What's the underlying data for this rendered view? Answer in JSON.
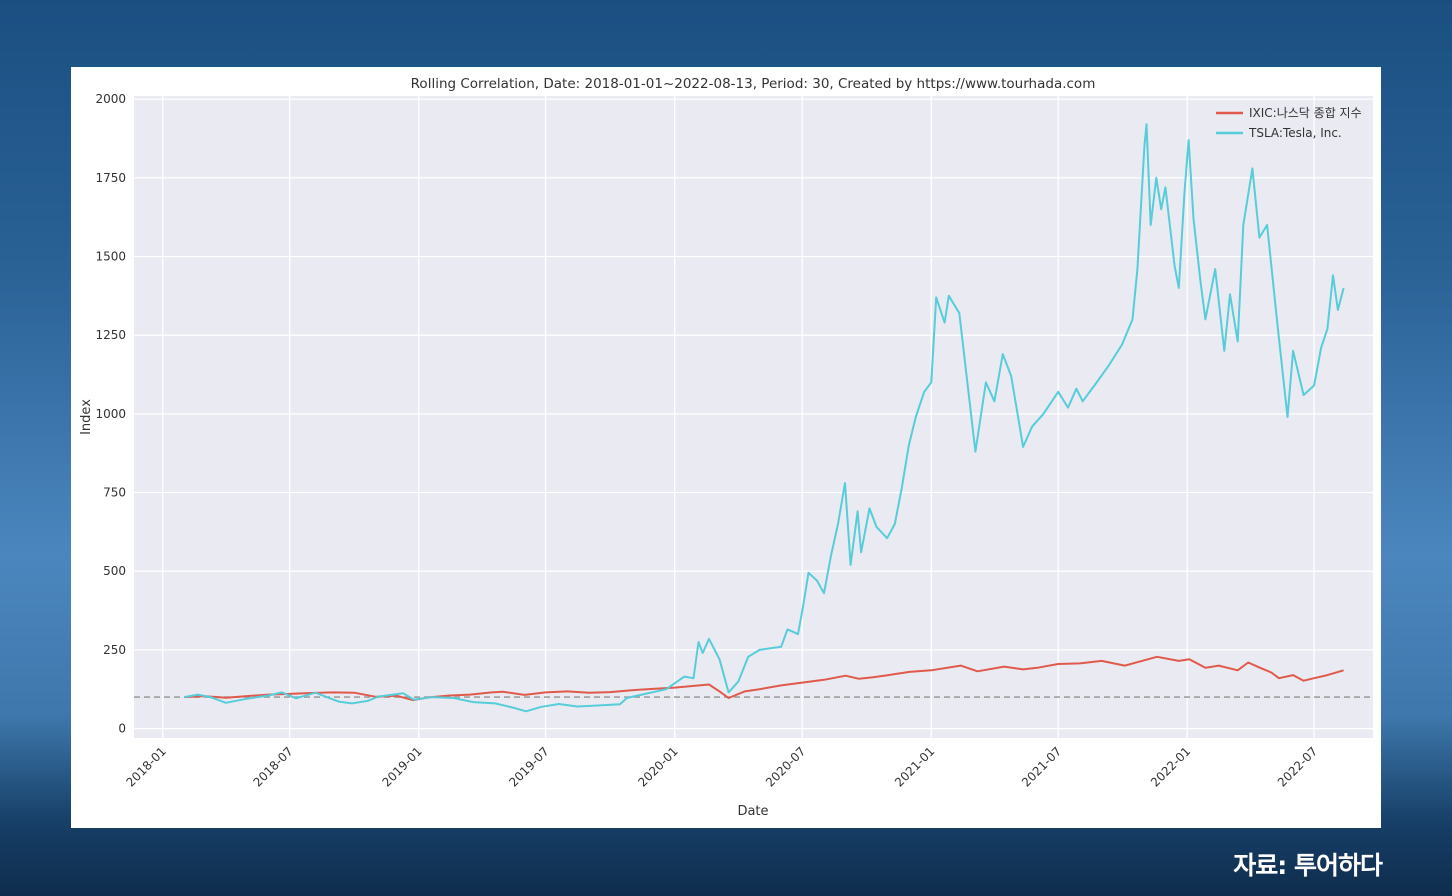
{
  "footer": {
    "source_credit": "자료: 투어하다"
  },
  "chart_data": {
    "type": "line",
    "title": "Rolling Correlation,  Date: 2018-01-01~2022-08-13, Period: 30, Created by https://www.tourhada.com",
    "xlabel": "Date",
    "ylabel": "Index",
    "xlim": [
      "2017-11-21",
      "2022-09-23"
    ],
    "ylim": [
      -30,
      2010
    ],
    "grid": true,
    "legend_position": "top-right",
    "x_ticks": [
      "2018-01",
      "2018-07",
      "2019-01",
      "2019-07",
      "2020-01",
      "2020-07",
      "2021-01",
      "2021-07",
      "2022-01",
      "2022-07"
    ],
    "y_ticks": [
      0,
      250,
      500,
      750,
      1000,
      1250,
      1500,
      1750,
      2000
    ],
    "baseline": {
      "y": 100,
      "style": "dashed",
      "color": "#a0a0a0"
    },
    "series": [
      {
        "name": "IXIC:나스닥 종합 지수",
        "color": "#e05a4b",
        "points": [
          [
            "2018-02-01",
            100
          ],
          [
            "2018-03-01",
            103
          ],
          [
            "2018-04-01",
            98
          ],
          [
            "2018-05-01",
            103
          ],
          [
            "2018-06-01",
            108
          ],
          [
            "2018-07-01",
            110
          ],
          [
            "2018-08-01",
            113
          ],
          [
            "2018-09-01",
            115
          ],
          [
            "2018-10-01",
            114
          ],
          [
            "2018-11-01",
            101
          ],
          [
            "2018-12-01",
            104
          ],
          [
            "2018-12-24",
            90
          ],
          [
            "2019-01-15",
            99
          ],
          [
            "2019-02-15",
            105
          ],
          [
            "2019-03-15",
            108
          ],
          [
            "2019-04-15",
            115
          ],
          [
            "2019-05-01",
            117
          ],
          [
            "2019-06-01",
            107
          ],
          [
            "2019-07-01",
            115
          ],
          [
            "2019-08-01",
            118
          ],
          [
            "2019-09-01",
            114
          ],
          [
            "2019-10-01",
            116
          ],
          [
            "2019-11-01",
            122
          ],
          [
            "2019-12-01",
            126
          ],
          [
            "2020-01-01",
            130
          ],
          [
            "2020-02-19",
            140
          ],
          [
            "2020-03-05",
            118
          ],
          [
            "2020-03-18",
            97
          ],
          [
            "2020-04-10",
            118
          ],
          [
            "2020-05-01",
            125
          ],
          [
            "2020-06-01",
            137
          ],
          [
            "2020-07-01",
            146
          ],
          [
            "2020-08-01",
            155
          ],
          [
            "2020-09-01",
            168
          ],
          [
            "2020-09-20",
            158
          ],
          [
            "2020-10-10",
            163
          ],
          [
            "2020-11-01",
            170
          ],
          [
            "2020-12-01",
            180
          ],
          [
            "2021-01-01",
            185
          ],
          [
            "2021-02-12",
            200
          ],
          [
            "2021-03-08",
            182
          ],
          [
            "2021-04-15",
            197
          ],
          [
            "2021-05-12",
            188
          ],
          [
            "2021-06-01",
            193
          ],
          [
            "2021-07-01",
            205
          ],
          [
            "2021-08-01",
            207
          ],
          [
            "2021-09-01",
            215
          ],
          [
            "2021-10-04",
            200
          ],
          [
            "2021-11-19",
            228
          ],
          [
            "2021-12-20",
            215
          ],
          [
            "2022-01-04",
            220
          ],
          [
            "2022-01-27",
            193
          ],
          [
            "2022-02-15",
            200
          ],
          [
            "2022-03-14",
            185
          ],
          [
            "2022-03-29",
            210
          ],
          [
            "2022-04-15",
            193
          ],
          [
            "2022-05-01",
            178
          ],
          [
            "2022-05-12",
            160
          ],
          [
            "2022-06-01",
            170
          ],
          [
            "2022-06-16",
            152
          ],
          [
            "2022-07-01",
            160
          ],
          [
            "2022-07-20",
            170
          ],
          [
            "2022-08-12",
            185
          ]
        ]
      },
      {
        "name": "TSLA:Tesla, Inc.",
        "color": "#56cdd9",
        "points": [
          [
            "2018-02-01",
            100
          ],
          [
            "2018-02-20",
            108
          ],
          [
            "2018-03-10",
            100
          ],
          [
            "2018-04-01",
            82
          ],
          [
            "2018-05-01",
            95
          ],
          [
            "2018-06-01",
            105
          ],
          [
            "2018-06-20",
            115
          ],
          [
            "2018-07-10",
            96
          ],
          [
            "2018-08-07",
            114
          ],
          [
            "2018-08-25",
            98
          ],
          [
            "2018-09-10",
            85
          ],
          [
            "2018-09-28",
            80
          ],
          [
            "2018-10-20",
            88
          ],
          [
            "2018-11-05",
            102
          ],
          [
            "2018-12-10",
            112
          ],
          [
            "2018-12-25",
            92
          ],
          [
            "2019-01-20",
            100
          ],
          [
            "2019-02-20",
            97
          ],
          [
            "2019-03-20",
            84
          ],
          [
            "2019-04-20",
            80
          ],
          [
            "2019-05-15",
            67
          ],
          [
            "2019-06-03",
            55
          ],
          [
            "2019-06-25",
            69
          ],
          [
            "2019-07-20",
            78
          ],
          [
            "2019-08-15",
            70
          ],
          [
            "2019-09-10",
            73
          ],
          [
            "2019-10-15",
            77
          ],
          [
            "2019-10-25",
            97
          ],
          [
            "2019-11-20",
            110
          ],
          [
            "2019-12-20",
            125
          ],
          [
            "2020-01-15",
            165
          ],
          [
            "2020-01-28",
            160
          ],
          [
            "2020-02-04",
            275
          ],
          [
            "2020-02-10",
            240
          ],
          [
            "2020-02-19",
            285
          ],
          [
            "2020-03-05",
            220
          ],
          [
            "2020-03-18",
            115
          ],
          [
            "2020-04-01",
            150
          ],
          [
            "2020-04-15",
            228
          ],
          [
            "2020-05-01",
            250
          ],
          [
            "2020-06-01",
            260
          ],
          [
            "2020-06-10",
            315
          ],
          [
            "2020-06-25",
            300
          ],
          [
            "2020-07-02",
            385
          ],
          [
            "2020-07-10",
            495
          ],
          [
            "2020-07-22",
            470
          ],
          [
            "2020-08-01",
            430
          ],
          [
            "2020-08-11",
            550
          ],
          [
            "2020-08-21",
            650
          ],
          [
            "2020-08-31",
            780
          ],
          [
            "2020-09-08",
            520
          ],
          [
            "2020-09-18",
            690
          ],
          [
            "2020-09-23",
            560
          ],
          [
            "2020-10-05",
            700
          ],
          [
            "2020-10-15",
            640
          ],
          [
            "2020-10-30",
            605
          ],
          [
            "2020-11-10",
            650
          ],
          [
            "2020-11-20",
            765
          ],
          [
            "2020-11-30",
            900
          ],
          [
            "2020-12-10",
            990
          ],
          [
            "2020-12-22",
            1070
          ],
          [
            "2021-01-01",
            1100
          ],
          [
            "2021-01-08",
            1370
          ],
          [
            "2021-01-20",
            1290
          ],
          [
            "2021-01-26",
            1375
          ],
          [
            "2021-02-10",
            1320
          ],
          [
            "2021-03-05",
            880
          ],
          [
            "2021-03-20",
            1100
          ],
          [
            "2021-04-01",
            1040
          ],
          [
            "2021-04-13",
            1190
          ],
          [
            "2021-04-25",
            1120
          ],
          [
            "2021-05-12",
            895
          ],
          [
            "2021-05-25",
            960
          ],
          [
            "2021-06-10",
            1000
          ],
          [
            "2021-07-01",
            1070
          ],
          [
            "2021-07-15",
            1020
          ],
          [
            "2021-07-27",
            1080
          ],
          [
            "2021-08-05",
            1040
          ],
          [
            "2021-08-25",
            1100
          ],
          [
            "2021-09-10",
            1150
          ],
          [
            "2021-09-30",
            1220
          ],
          [
            "2021-10-15",
            1300
          ],
          [
            "2021-10-22",
            1460
          ],
          [
            "2021-11-01",
            1850
          ],
          [
            "2021-11-04",
            1920
          ],
          [
            "2021-11-10",
            1600
          ],
          [
            "2021-11-18",
            1750
          ],
          [
            "2021-11-25",
            1650
          ],
          [
            "2021-12-01",
            1720
          ],
          [
            "2021-12-14",
            1470
          ],
          [
            "2021-12-20",
            1400
          ],
          [
            "2021-12-28",
            1700
          ],
          [
            "2022-01-03",
            1870
          ],
          [
            "2022-01-10",
            1620
          ],
          [
            "2022-01-20",
            1420
          ],
          [
            "2022-01-27",
            1300
          ],
          [
            "2022-02-10",
            1460
          ],
          [
            "2022-02-23",
            1200
          ],
          [
            "2022-03-03",
            1380
          ],
          [
            "2022-03-14",
            1230
          ],
          [
            "2022-03-22",
            1600
          ],
          [
            "2022-04-04",
            1780
          ],
          [
            "2022-04-14",
            1560
          ],
          [
            "2022-04-25",
            1600
          ],
          [
            "2022-05-09",
            1300
          ],
          [
            "2022-05-24",
            990
          ],
          [
            "2022-06-01",
            1200
          ],
          [
            "2022-06-16",
            1060
          ],
          [
            "2022-07-01",
            1090
          ],
          [
            "2022-07-11",
            1210
          ],
          [
            "2022-07-20",
            1270
          ],
          [
            "2022-07-28",
            1440
          ],
          [
            "2022-08-04",
            1330
          ],
          [
            "2022-08-12",
            1400
          ]
        ]
      }
    ]
  }
}
